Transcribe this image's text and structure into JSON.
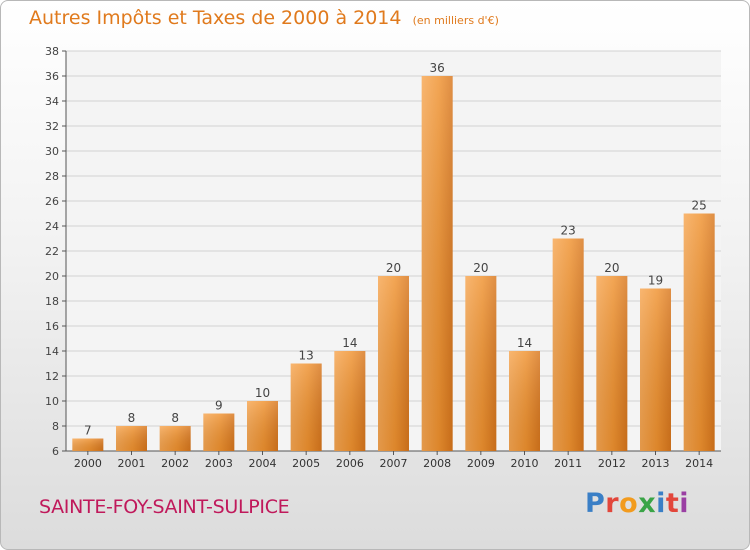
{
  "chart_data": {
    "type": "bar",
    "title": "Autres Impôts et Taxes de 2000 à 2014",
    "unit_note": "(en milliers d'€)",
    "categories": [
      "2000",
      "2001",
      "2002",
      "2003",
      "2004",
      "2005",
      "2006",
      "2007",
      "2008",
      "2009",
      "2010",
      "2011",
      "2012",
      "2013",
      "2014"
    ],
    "values": [
      7,
      8,
      8,
      9,
      10,
      13,
      14,
      20,
      36,
      20,
      14,
      23,
      20,
      19,
      25
    ],
    "ylim": [
      6,
      38
    ],
    "yticks": [
      6,
      8,
      10,
      12,
      14,
      16,
      18,
      20,
      22,
      24,
      26,
      28,
      30,
      32,
      34,
      36,
      38
    ],
    "grid": true,
    "bar_color": "#f0922f"
  },
  "footer": {
    "city": "SAINTE-FOY-SAINT-SULPICE",
    "logo_text": "Proxiti",
    "logo_colors": [
      "#3a7fc6",
      "#e2463b",
      "#f29b1e",
      "#3aa447",
      "#3a7fc6",
      "#e2463b",
      "#9a3fa3"
    ]
  }
}
